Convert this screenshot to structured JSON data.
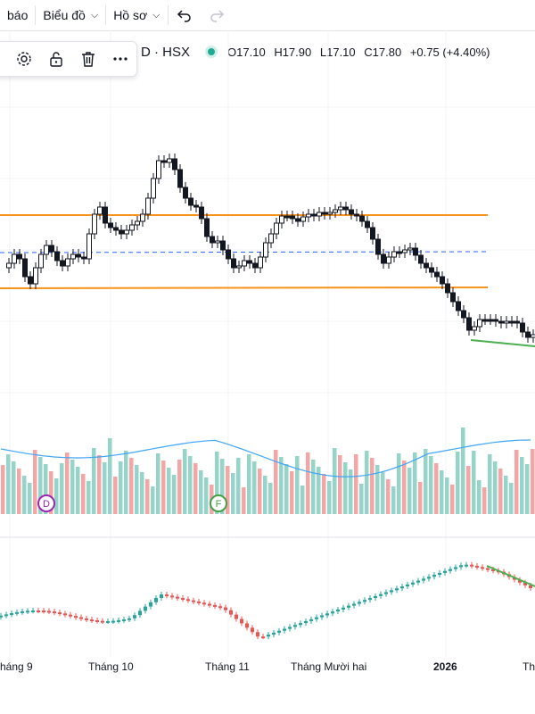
{
  "toolbar": {
    "report_label": "báo",
    "chart_label": "Biểu đồ",
    "profile_label": "Hồ sơ",
    "undo_icon": "undo-icon",
    "redo_icon": "redo-icon"
  },
  "legend": {
    "symbol": "D · HSX",
    "open_key": "O",
    "open": "17.10",
    "high_key": "H",
    "high": "17.90",
    "low_key": "L",
    "low": "17.10",
    "close_key": "C",
    "close": "17.80",
    "change": "+0.75 (+4.40%)",
    "status_color": "#22ab94"
  },
  "floating_toolbar": {
    "icons": [
      "gear-icon",
      "unlock-icon",
      "trash-icon",
      "more-icon"
    ]
  },
  "colors": {
    "up": "#26a69a",
    "down": "#ef5350",
    "candle": "#131722",
    "level": "#f7931a",
    "dashed": "#2962ff",
    "trend": "#4caf50",
    "ma": "#42a5f5"
  },
  "events": [
    {
      "letter": "D",
      "color": "#9c27b0"
    },
    {
      "letter": "F",
      "color": "#43a047"
    }
  ],
  "x_axis": {
    "labels": [
      "háng 9",
      "Tháng 10",
      "Tháng 11",
      "Tháng Mười hai",
      "2026",
      "Th"
    ]
  }
}
